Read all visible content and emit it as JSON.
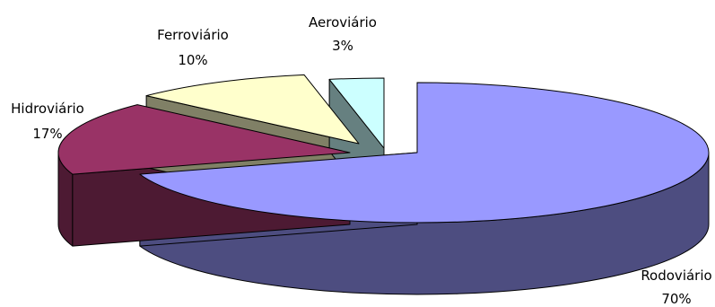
{
  "chart_data": {
    "type": "pie",
    "style": "3d-exploded",
    "title": "",
    "categories": [
      "Rodoviário",
      "Hidroviário",
      "Ferroviário",
      "Aeroviário"
    ],
    "values": [
      70,
      17,
      10,
      3
    ],
    "value_labels": [
      "70%",
      "17%",
      "10%",
      "3%"
    ],
    "colors": [
      "#9999ff",
      "#993366",
      "#ffffcc",
      "#ccffff"
    ],
    "side_colors": [
      "#4d4d80",
      "#4d1a33",
      "#808066",
      "#668080"
    ],
    "legend": "none",
    "labels": "outside"
  }
}
